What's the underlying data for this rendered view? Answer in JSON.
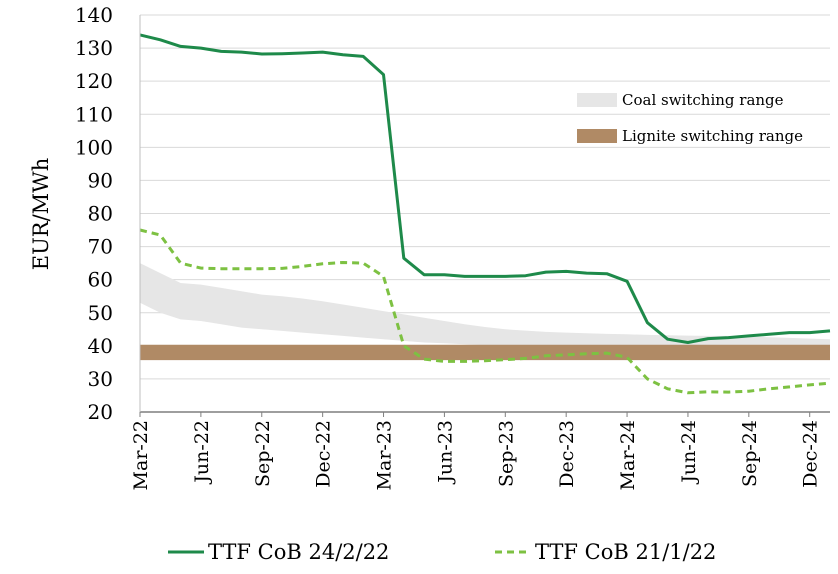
{
  "chart_data": {
    "type": "line",
    "title": "",
    "xlabel": "",
    "ylabel": "EUR/MWh",
    "ylim": [
      20,
      140
    ],
    "yticks": [
      20,
      30,
      40,
      50,
      60,
      70,
      80,
      90,
      100,
      110,
      120,
      130,
      140
    ],
    "x": [
      "Mar-22",
      "Apr-22",
      "May-22",
      "Jun-22",
      "Jul-22",
      "Aug-22",
      "Sep-22",
      "Oct-22",
      "Nov-22",
      "Dec-22",
      "Jan-23",
      "Feb-23",
      "Mar-23",
      "Apr-23",
      "May-23",
      "Jun-23",
      "Jul-23",
      "Aug-23",
      "Sep-23",
      "Oct-23",
      "Nov-23",
      "Dec-23",
      "Jan-24",
      "Feb-24",
      "Mar-24",
      "Apr-24",
      "May-24",
      "Jun-24",
      "Jul-24",
      "Aug-24",
      "Sep-24",
      "Oct-24",
      "Nov-24",
      "Dec-24",
      "Jan-25"
    ],
    "xtick_labels": [
      "Mar-22",
      "Jun-22",
      "Sep-22",
      "Dec-22",
      "Mar-23",
      "Jun-23",
      "Sep-23",
      "Dec-23",
      "Mar-24",
      "Jun-24",
      "Sep-24",
      "Dec-24"
    ],
    "grid": "horizontal",
    "legend_placement": "right, inside plot",
    "bottom_legend_placement": "bottom",
    "series": [
      {
        "name": "TTF CoB 24/2/22",
        "style": "solid",
        "color": "#1e8a4a",
        "values": [
          134,
          132.5,
          130.5,
          130,
          129,
          128.8,
          128.2,
          128.3,
          128.5,
          128.8,
          128,
          127.5,
          122,
          66.5,
          61.5,
          61.5,
          61,
          61,
          61,
          61.2,
          62.3,
          62.5,
          62,
          61.8,
          59.5,
          47,
          42,
          41,
          42.2,
          42.5,
          43,
          43.5,
          44,
          44,
          44.5
        ]
      },
      {
        "name": "TTF CoB 21/1/22",
        "style": "dashed",
        "color": "#7dc142",
        "values": [
          75,
          73.5,
          65,
          63.5,
          63.3,
          63.3,
          63.3,
          63.4,
          64,
          64.8,
          65.2,
          65,
          61,
          40,
          36,
          35.3,
          35.3,
          35.5,
          35.8,
          36.2,
          37,
          37.3,
          37.6,
          37.8,
          36.5,
          30,
          27,
          25.8,
          26.1,
          26,
          26.3,
          27,
          27.6,
          28.2,
          28.7
        ]
      }
    ],
    "bands": [
      {
        "name": "Coal switching range",
        "color": "#e6e6e6",
        "lower": [
          53,
          50,
          48,
          47.5,
          46.5,
          45.5,
          45,
          44.5,
          44,
          43.5,
          43,
          42.5,
          42,
          41.5,
          41,
          40.8,
          40.5,
          40.2,
          40,
          39.8,
          39.7,
          39.5,
          39.3,
          39.1,
          39,
          38.5,
          38,
          37.5,
          37.2,
          37,
          36.8,
          36.5,
          36.3,
          36.1,
          36
        ],
        "upper": [
          65,
          62,
          59,
          58.5,
          57.5,
          56.5,
          55.5,
          55,
          54.3,
          53.5,
          52.5,
          51.5,
          50.5,
          49.5,
          48.5,
          47.5,
          46.5,
          45.7,
          45,
          44.6,
          44.2,
          44,
          43.8,
          43.6,
          43.5,
          43.3,
          43.2,
          43.1,
          43,
          43,
          42.8,
          42.6,
          42.4,
          42.2,
          42
        ]
      },
      {
        "name": "Lignite switching range",
        "color": "#b08a65",
        "lower": [
          35.7,
          35.7,
          35.7,
          35.7,
          35.7,
          35.7,
          35.7,
          35.7,
          35.7,
          35.7,
          35.7,
          35.7,
          35.7,
          35.7,
          35.7,
          35.7,
          35.7,
          35.7,
          35.7,
          35.7,
          35.7,
          35.7,
          35.7,
          35.7,
          35.7,
          35.7,
          35.7,
          35.7,
          35.7,
          35.7,
          35.7,
          35.7,
          35.7,
          35.7,
          35.7
        ],
        "upper": [
          40.3,
          40.3,
          40.3,
          40.3,
          40.3,
          40.3,
          40.3,
          40.3,
          40.3,
          40.3,
          40.3,
          40.3,
          40.3,
          40.3,
          40.3,
          40.3,
          40.3,
          40.3,
          40.3,
          40.3,
          40.3,
          40.3,
          40.3,
          40.3,
          40.3,
          40.3,
          40.3,
          40.3,
          40.3,
          40.3,
          40.3,
          40.3,
          40.3,
          40.3,
          40.3
        ]
      }
    ]
  }
}
